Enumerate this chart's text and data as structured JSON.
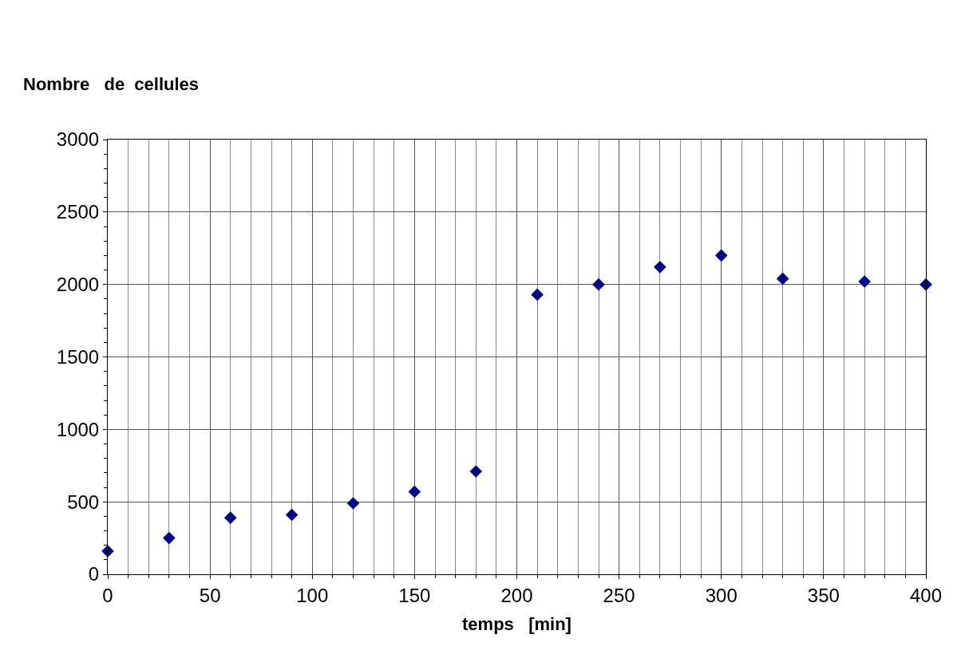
{
  "chart_data": {
    "type": "scatter",
    "ylabel": "Nombre   de  cellules",
    "xlabel": "temps   [min]",
    "x": [
      0,
      30,
      60,
      90,
      120,
      150,
      180,
      210,
      240,
      270,
      300,
      330,
      370,
      400
    ],
    "series": [
      {
        "color": "#000080",
        "values": [
          160,
          250,
          390,
          410,
          490,
          570,
          710,
          1930,
          2000,
          2120,
          2200,
          2040,
          2020,
          2000
        ]
      }
    ],
    "xlim": [
      0,
      400
    ],
    "xticks": [
      0,
      50,
      100,
      150,
      200,
      250,
      300,
      350,
      400
    ],
    "ylim": [
      0,
      3000
    ],
    "yticks": [
      0,
      500,
      1000,
      1500,
      2000,
      2500,
      3000
    ],
    "grid": true,
    "legend": false,
    "marker": "diamond"
  }
}
